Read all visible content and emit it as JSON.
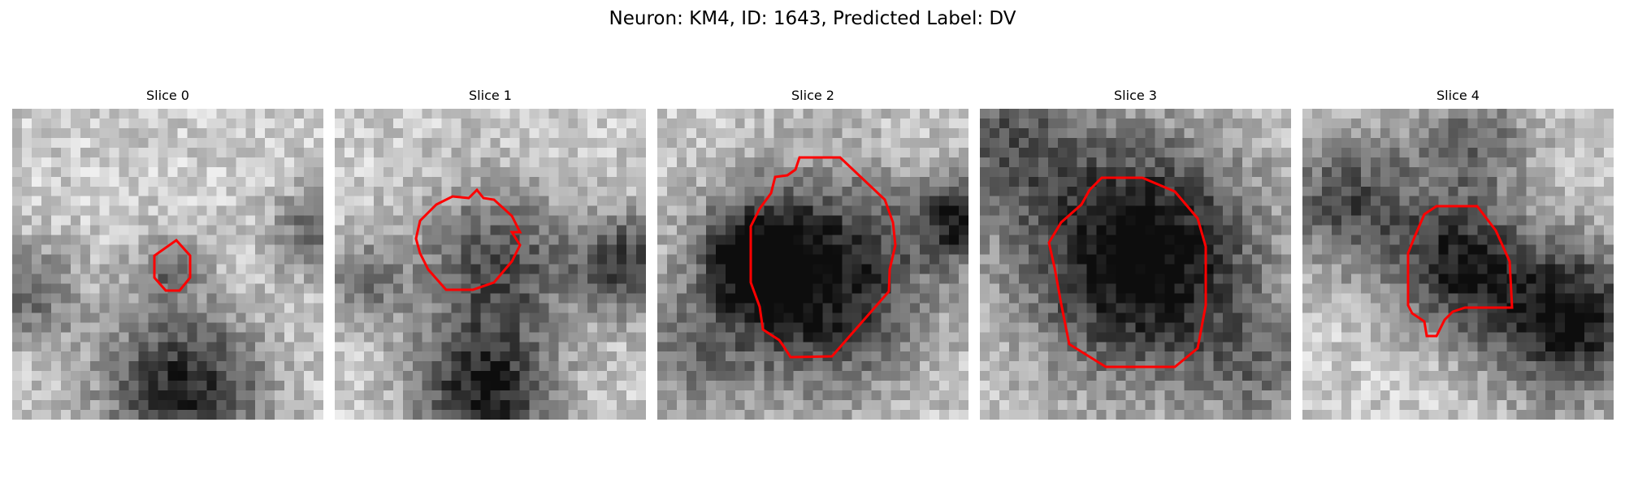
{
  "figure": {
    "title": "Neuron: KM4, ID: 1643, Predicted Label: DV",
    "contour_color": "#ff0000"
  },
  "slices": [
    {
      "label": "Slice 0"
    },
    {
      "label": "Slice 1"
    },
    {
      "label": "Slice 2"
    },
    {
      "label": "Slice 3"
    },
    {
      "label": "Slice 4"
    }
  ]
}
